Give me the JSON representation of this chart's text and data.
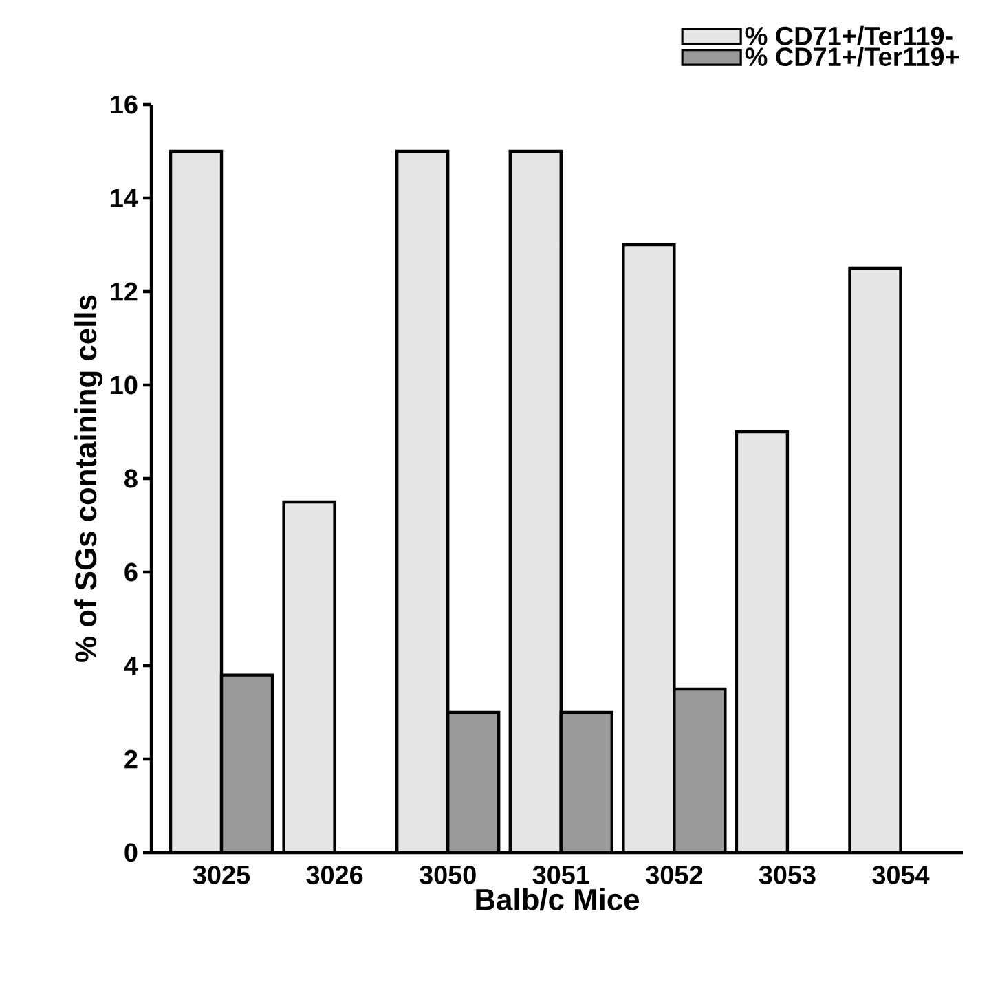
{
  "chart_data": {
    "type": "bar",
    "xlabel": "Balb/c Mice",
    "ylabel": "% of SGs containing cells",
    "categories": [
      "3025",
      "3026",
      "3050",
      "3051",
      "3052",
      "3053",
      "3054"
    ],
    "series": [
      {
        "name": "% CD71+/Ter119-",
        "color": "#e6e6e6",
        "values": [
          15,
          7.5,
          15,
          15,
          13,
          9,
          12.5
        ]
      },
      {
        "name": "% CD71+/Ter119+",
        "color": "#9a9a9a",
        "values": [
          3.8,
          null,
          3,
          3,
          3.5,
          null,
          null
        ]
      }
    ],
    "ylim": [
      0,
      16
    ],
    "yticks": [
      0,
      2,
      4,
      6,
      8,
      10,
      12,
      14,
      16
    ],
    "legend": "top right"
  }
}
